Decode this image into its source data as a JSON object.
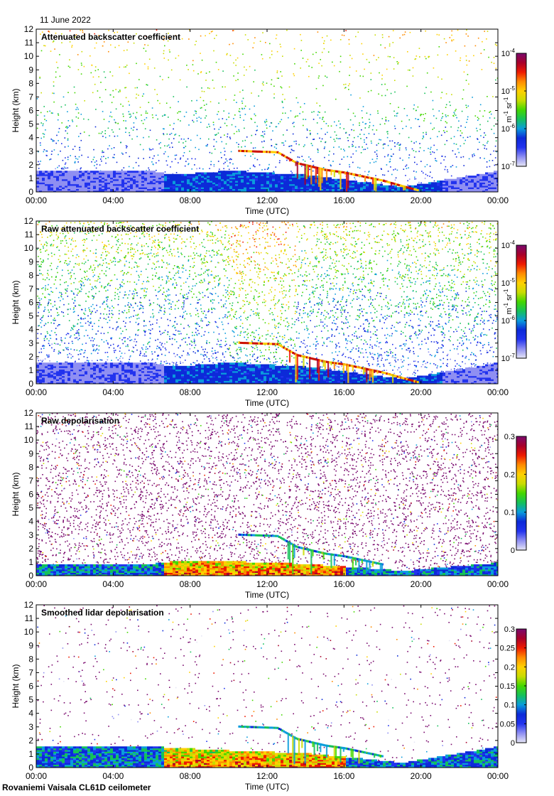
{
  "date": "11 June 2022",
  "footer": "Rovaniemi Vaisala CL61D ceilometer",
  "colors": {
    "ramp": [
      "#e6e6f5",
      "#8f8ff2",
      "#2233ee",
      "#0c2ad8",
      "#0a9cdc",
      "#15c15a",
      "#44d700",
      "#c9dc00",
      "#ffd000",
      "#ff8a00",
      "#ee1a00",
      "#a8002a",
      "#7a0a6e"
    ],
    "noise_purple": "#7a0a6e"
  },
  "chart_data": [
    {
      "type": "heatmap",
      "title": "Attenuated backscatter coefficient",
      "xlabel": "Time (UTC)",
      "ylabel": "Height (km)",
      "xticks": [
        "00:00",
        "04:00",
        "08:00",
        "12:00",
        "16:00",
        "20:00",
        "00:00"
      ],
      "yticks": [
        "0",
        "1",
        "2",
        "3",
        "4",
        "5",
        "6",
        "7",
        "8",
        "9",
        "10",
        "11",
        "12"
      ],
      "ylim": [
        0,
        12
      ],
      "xlim_hours": [
        0,
        24
      ],
      "colorbar": {
        "scale": "log",
        "range": [
          1e-07,
          0.0001
        ],
        "ticks": [
          "10",
          "10",
          "10",
          "10"
        ],
        "tick_exps": [
          "-7",
          "-6",
          "-5",
          "-4"
        ],
        "label_parts": [
          "m",
          "-1",
          " sr",
          "-1"
        ]
      },
      "cloud_layer": [
        [
          10.5,
          3.1
        ],
        [
          12.5,
          3.0
        ],
        [
          13.5,
          2.2
        ],
        [
          15,
          1.7
        ],
        [
          16,
          1.5
        ],
        [
          17,
          1.2
        ],
        [
          18,
          0.9
        ],
        [
          19,
          0.5
        ],
        [
          19.8,
          0.2
        ]
      ],
      "boundary_layer": [
        [
          0,
          1.5
        ],
        [
          6,
          1.5
        ],
        [
          7,
          1.2
        ],
        [
          10,
          1.5
        ],
        [
          14,
          1.2
        ],
        [
          19,
          0.3
        ],
        [
          24,
          1.5
        ]
      ],
      "aerosol_dense_hours": [
        6.5,
        21
      ],
      "background": "clear-sky-gradient"
    },
    {
      "type": "heatmap",
      "title": "Raw attenuated backscatter coefficient",
      "xlabel": "Time (UTC)",
      "ylabel": "Height (km)",
      "xticks": [
        "00:00",
        "04:00",
        "08:00",
        "12:00",
        "16:00",
        "20:00",
        "00:00"
      ],
      "yticks": [
        "0",
        "1",
        "2",
        "3",
        "4",
        "5",
        "6",
        "7",
        "8",
        "9",
        "10",
        "11",
        "12"
      ],
      "ylim": [
        0,
        12
      ],
      "xlim_hours": [
        0,
        24
      ],
      "colorbar": {
        "scale": "log",
        "range": [
          1e-07,
          0.0001
        ],
        "ticks": [
          "10",
          "10",
          "10",
          "10"
        ],
        "tick_exps": [
          "-7",
          "-6",
          "-5",
          "-4"
        ],
        "label_parts": [
          "m",
          "-1",
          " sr",
          "-1"
        ]
      },
      "cloud_layer": [
        [
          10.5,
          3.1
        ],
        [
          12.5,
          3.0
        ],
        [
          13.5,
          2.2
        ],
        [
          15,
          1.7
        ],
        [
          16,
          1.5
        ],
        [
          17,
          1.2
        ],
        [
          18,
          0.9
        ],
        [
          19,
          0.5
        ],
        [
          19.8,
          0.2
        ]
      ],
      "boundary_layer": [
        [
          0,
          1.5
        ],
        [
          6,
          1.5
        ],
        [
          7,
          1.2
        ],
        [
          10,
          1.5
        ],
        [
          14,
          1.2
        ],
        [
          19,
          0.3
        ],
        [
          24,
          1.5
        ]
      ],
      "aerosol_dense_hours": [
        6.5,
        21
      ],
      "background": "noisy-green-blue"
    },
    {
      "type": "heatmap",
      "title": "Raw depolarisation",
      "xlabel": "Time (UTC)",
      "ylabel": "Height (km)",
      "xticks": [
        "00:00",
        "04:00",
        "08:00",
        "12:00",
        "16:00",
        "20:00",
        "00:00"
      ],
      "yticks": [
        "0",
        "1",
        "2",
        "3",
        "4",
        "5",
        "6",
        "7",
        "8",
        "9",
        "10",
        "11",
        "12"
      ],
      "ylim": [
        0,
        12
      ],
      "xlim_hours": [
        0,
        24
      ],
      "colorbar": {
        "scale": "linear",
        "range": [
          0,
          0.3
        ],
        "ticks": [
          "0",
          "0.1",
          "0.2",
          "0.3"
        ]
      },
      "cloud_layer": [
        [
          10.5,
          3.1
        ],
        [
          12.5,
          3.0
        ],
        [
          13.5,
          2.2
        ],
        [
          15,
          1.7
        ],
        [
          16,
          1.5
        ],
        [
          17,
          1.2
        ],
        [
          18,
          0.9
        ]
      ],
      "boundary_layer": [
        [
          0,
          0.8
        ],
        [
          6,
          0.8
        ],
        [
          7,
          1.0
        ],
        [
          10,
          1.0
        ],
        [
          14,
          0.8
        ],
        [
          19,
          0.3
        ],
        [
          24,
          0.9
        ]
      ],
      "aerosol_dense_hours": [
        6.5,
        16
      ],
      "background": "purple-white-noise"
    },
    {
      "type": "heatmap",
      "title": "Smoothed lidar depolarisation",
      "xlabel": "Time (UTC)",
      "ylabel": "Height (km)",
      "xticks": [
        "00:00",
        "04:00",
        "08:00",
        "12:00",
        "16:00",
        "20:00",
        "00:00"
      ],
      "yticks": [
        "0",
        "1",
        "2",
        "3",
        "4",
        "5",
        "6",
        "7",
        "8",
        "9",
        "10",
        "11",
        "12"
      ],
      "ylim": [
        0,
        12
      ],
      "xlim_hours": [
        0,
        24
      ],
      "colorbar": {
        "scale": "linear",
        "range": [
          0,
          0.3
        ],
        "ticks": [
          "0",
          "0.05",
          "0.1",
          "0.15",
          "0.2",
          "0.25",
          "0.3"
        ]
      },
      "cloud_layer": [
        [
          10.5,
          3.1
        ],
        [
          12.5,
          3.0
        ],
        [
          13.5,
          2.2
        ],
        [
          15,
          1.7
        ],
        [
          16,
          1.5
        ],
        [
          17,
          1.2
        ],
        [
          18,
          0.9
        ]
      ],
      "boundary_layer": [
        [
          0,
          1.5
        ],
        [
          6,
          1.5
        ],
        [
          7,
          1.4
        ],
        [
          10,
          1.2
        ],
        [
          14,
          1.0
        ],
        [
          19,
          0.3
        ],
        [
          24,
          1.5
        ]
      ],
      "aerosol_dense_hours": [
        6.5,
        16
      ],
      "background": "sparse-purple-dots"
    }
  ]
}
